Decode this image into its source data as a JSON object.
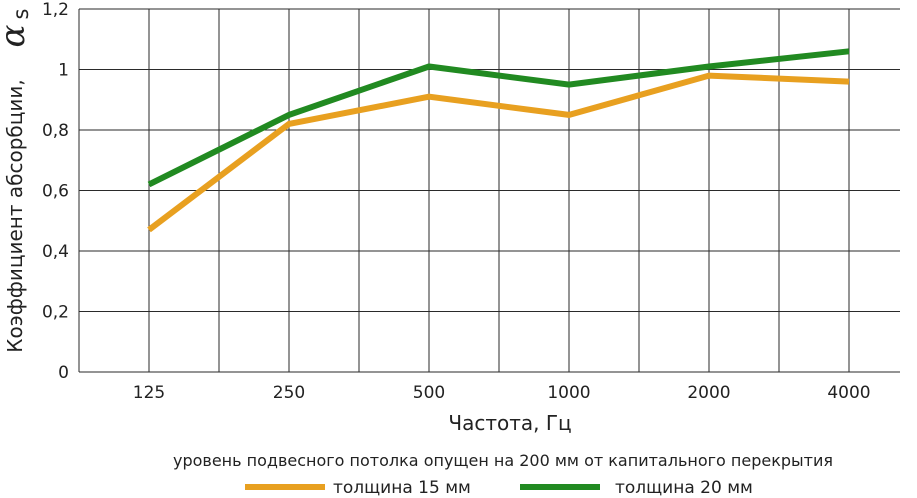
{
  "chart_data": {
    "type": "line",
    "categories": [
      "125",
      "250",
      "500",
      "1000",
      "2000",
      "4000"
    ],
    "series": [
      {
        "name": "толщина 15 мм",
        "color": "#e8a020",
        "values": [
          0.47,
          0.82,
          0.91,
          0.85,
          0.98,
          0.96
        ]
      },
      {
        "name": "толщина 20 мм",
        "color": "#218a21",
        "values": [
          0.62,
          0.85,
          1.01,
          0.95,
          1.01,
          1.06
        ]
      }
    ],
    "ylim": [
      0,
      1.2
    ],
    "yticks": [
      "0",
      "0,2",
      "0,4",
      "0,6",
      "0,8",
      "1",
      "1,2"
    ],
    "xlabel": "Частота, Гц",
    "ylabel": "Коэффициент абсорбции,",
    "ylabel_symbol": "α",
    "ylabel_symbol_sub": "s",
    "note": "уровень подвесного потолка опущен на 200 мм от капитального перекрытия",
    "grid": true,
    "legend_position": "bottom"
  }
}
